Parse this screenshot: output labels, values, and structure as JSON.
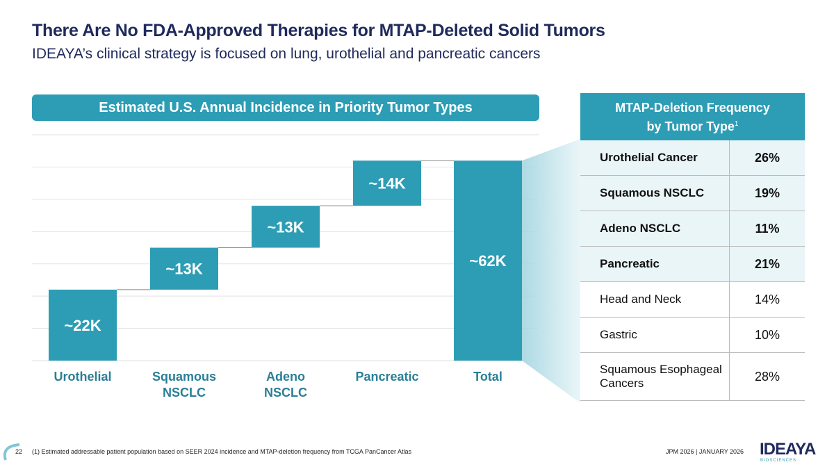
{
  "header": {
    "title": "There Are No FDA-Approved Therapies for MTAP-Deleted Solid Tumors",
    "subtitle": "IDEAYA’s clinical strategy is focused on lung, urothelial and pancreatic cancers"
  },
  "chart_data": {
    "type": "bar",
    "subtype": "waterfall",
    "title": "Estimated U.S. Annual Incidence in Priority Tumor Types",
    "categories": [
      "Urothelial",
      "Squamous NSCLC",
      "Adeno NSCLC",
      "Pancreatic",
      "Total"
    ],
    "category_lines": [
      [
        "Urothelial"
      ],
      [
        "Squamous",
        "NSCLC"
      ],
      [
        "Adeno",
        "NSCLC"
      ],
      [
        "Pancreatic"
      ],
      [
        "Total"
      ]
    ],
    "values": [
      22,
      13,
      13,
      14,
      62
    ],
    "labels": [
      "~22K",
      "~13K",
      "~13K",
      "~14K",
      "~62K"
    ],
    "is_total": [
      false,
      false,
      false,
      false,
      true
    ],
    "unit": "K patients",
    "ylim": [
      0,
      70
    ],
    "grid": true,
    "color": "#2d9db5"
  },
  "table": {
    "header_line1": "MTAP-Deletion Frequency",
    "header_line2": "by Tumor Type",
    "header_sup": "1",
    "rows": [
      {
        "name": "Urothelial Cancer",
        "value": "26%"
      },
      {
        "name": "Squamous NSCLC",
        "value": "19%"
      },
      {
        "name": "Adeno NSCLC",
        "value": "11%"
      },
      {
        "name": "Pancreatic",
        "value": "21%"
      },
      {
        "name": "Head and Neck",
        "value": "14%"
      },
      {
        "name": "Gastric",
        "value": "10%"
      },
      {
        "name": "Squamous Esophageal Cancers",
        "value": "28%"
      }
    ]
  },
  "footer": {
    "page": "22",
    "footnote": "(1) Estimated addressable patient population based on SEER 2024 incidence and MTAP-deletion frequency from TCGA PanCancer Atlas",
    "event": "JPM 2026  | JANUARY 2026",
    "logo": "IDEAYA",
    "logo_sub": "BIOSCIENCES"
  }
}
